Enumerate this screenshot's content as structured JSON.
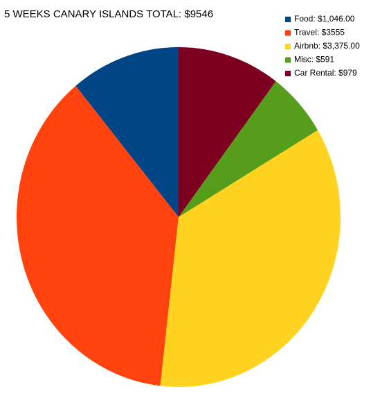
{
  "chart_data": {
    "type": "pie",
    "title": "5 WEEKS CANARY ISLANDS TOTAL: $9546",
    "categories": [
      "Food: $1,046.00",
      "Travel: $3555",
      "Airbnb: $3,375.00",
      "Misc: $591",
      "Car Rental: $979"
    ],
    "values": [
      1046,
      3555,
      3375,
      591,
      979
    ],
    "colors": [
      "#004586",
      "#ff420e",
      "#ffd320",
      "#579d1c",
      "#7e0021"
    ],
    "legend": "top-right"
  }
}
